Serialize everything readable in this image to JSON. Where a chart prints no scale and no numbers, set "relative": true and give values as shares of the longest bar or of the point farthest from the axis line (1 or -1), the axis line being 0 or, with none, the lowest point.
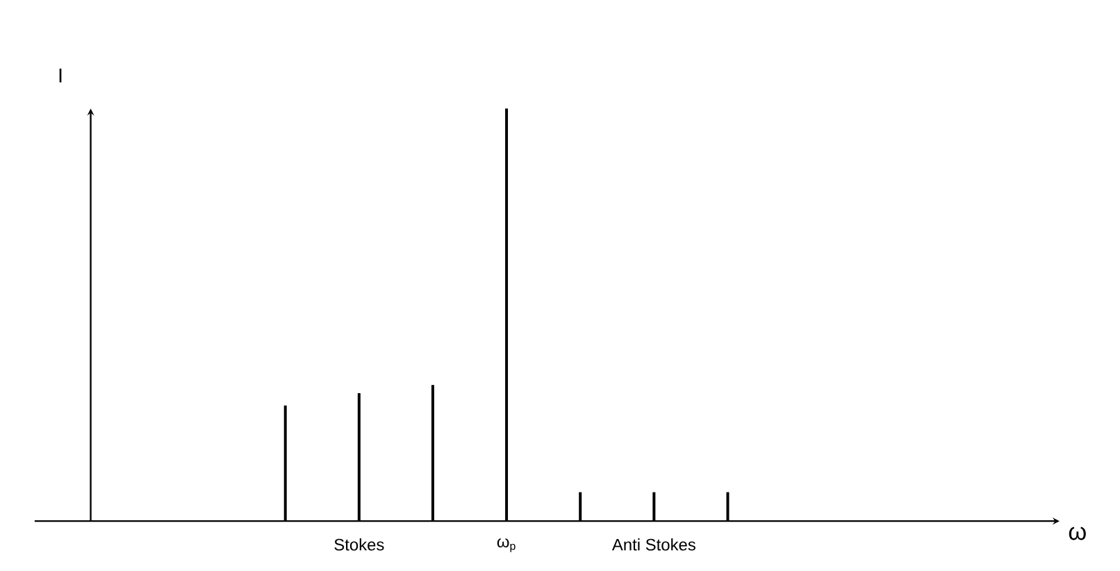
{
  "chart_data": {
    "type": "bar",
    "relative": true,
    "categories": [
      null,
      "Stokes",
      null,
      "ω$_{p}$",
      null,
      "Anti Stokes",
      null
    ],
    "values": [
      0.28,
      0.31,
      0.33,
      1,
      0.07,
      0.07,
      0.07
    ],
    "color": "#000000",
    "annotations": [
      "I",
      "ω"
    ]
  }
}
